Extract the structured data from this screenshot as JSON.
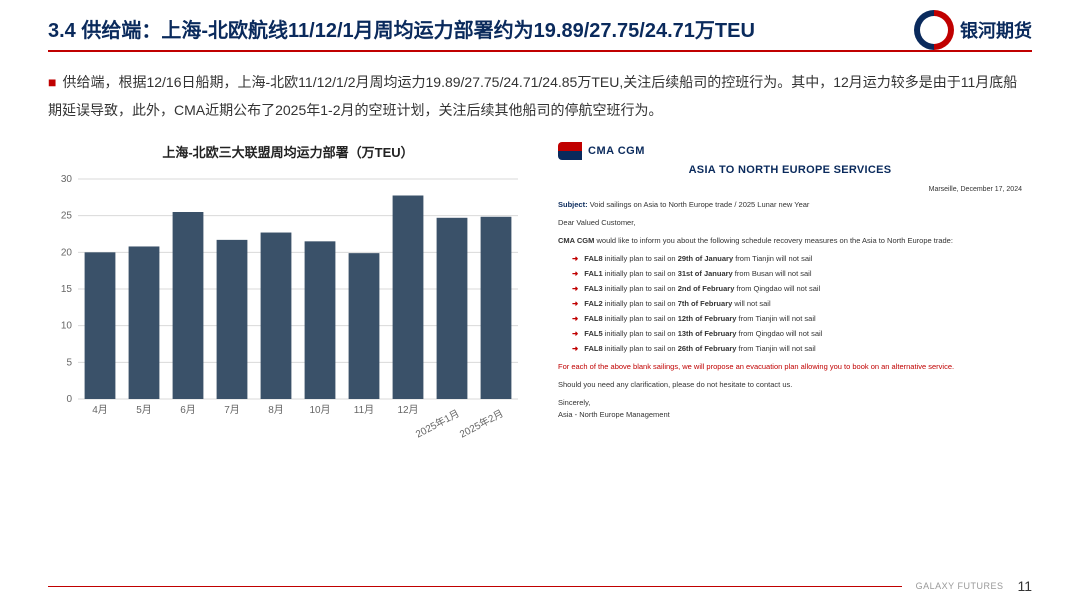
{
  "header": {
    "title": "3.4 供给端：上海-北欧航线11/12/1月周均运力部署约为19.89/27.75/24.71万TEU",
    "logo_text": "银河期货"
  },
  "body": {
    "paragraph": "供给端，根据12/16日船期，上海-北欧11/12/1/2月周均运力19.89/27.75/24.71/24.85万TEU,关注后续船司的控班行为。其中，12月运力较多是由于11月底船期延误导致，此外，CMA近期公布了2025年1-2月的空班计划，关注后续其他船司的停航空班行为。"
  },
  "chart": {
    "title": "上海-北欧三大联盟周均运力部署（万TEU）",
    "type": "bar",
    "categories": [
      "4月",
      "5月",
      "6月",
      "7月",
      "8月",
      "10月",
      "11月",
      "12月",
      "2025年1月",
      "2025年2月"
    ],
    "values": [
      20.0,
      20.8,
      25.5,
      21.7,
      22.7,
      21.5,
      19.89,
      27.75,
      24.71,
      24.85
    ],
    "bar_color": "#3a5169",
    "ylim": [
      0,
      30
    ],
    "ytick_step": 5,
    "grid_color": "#d9d9d9",
    "background_color": "#ffffff",
    "axis_fontsize": 10,
    "bar_width_ratio": 0.7,
    "rotate_last_n": 2,
    "rotate_deg": -28
  },
  "notice": {
    "brand": "CMA CGM",
    "heading": "ASIA TO NORTH EUROPE SERVICES",
    "date": "Marseille, December 17, 2024",
    "subject_label": "Subject:",
    "subject": "Void sailings on Asia to North Europe trade / 2025 Lunar new Year",
    "salutation": "Dear Valued Customer,",
    "intro": "CMA CGM would like to inform you about the following schedule recovery measures on the Asia to North Europe trade:",
    "items": [
      "FAL8 initially plan to sail on 29th of January from Tianjin will not sail",
      "FAL1 initially plan to sail on 31st of January from Busan will not sail",
      "FAL3 initially plan to sail on 2nd of February from Qingdao will not sail",
      "FAL2 initially plan to sail on 7th of February will not sail",
      "FAL8 initially plan to sail on 12th of February from Tianjin will not sail",
      "FAL5 initially plan to sail on 13th of February from Qingdao will not sail",
      "FAL8 initially plan to sail on 26th of February from Tianjin will not sail"
    ],
    "footer1": "For each of the above blank sailings, we will propose an evacuation plan allowing you to book on an alternative service.",
    "footer2": "Should you need any clarification, please do not hesitate to contact us.",
    "signoff1": "Sincerely,",
    "signoff2": "Asia - North Europe Management"
  },
  "footer": {
    "brand": "GALAXY FUTURES",
    "page_number": "11"
  }
}
